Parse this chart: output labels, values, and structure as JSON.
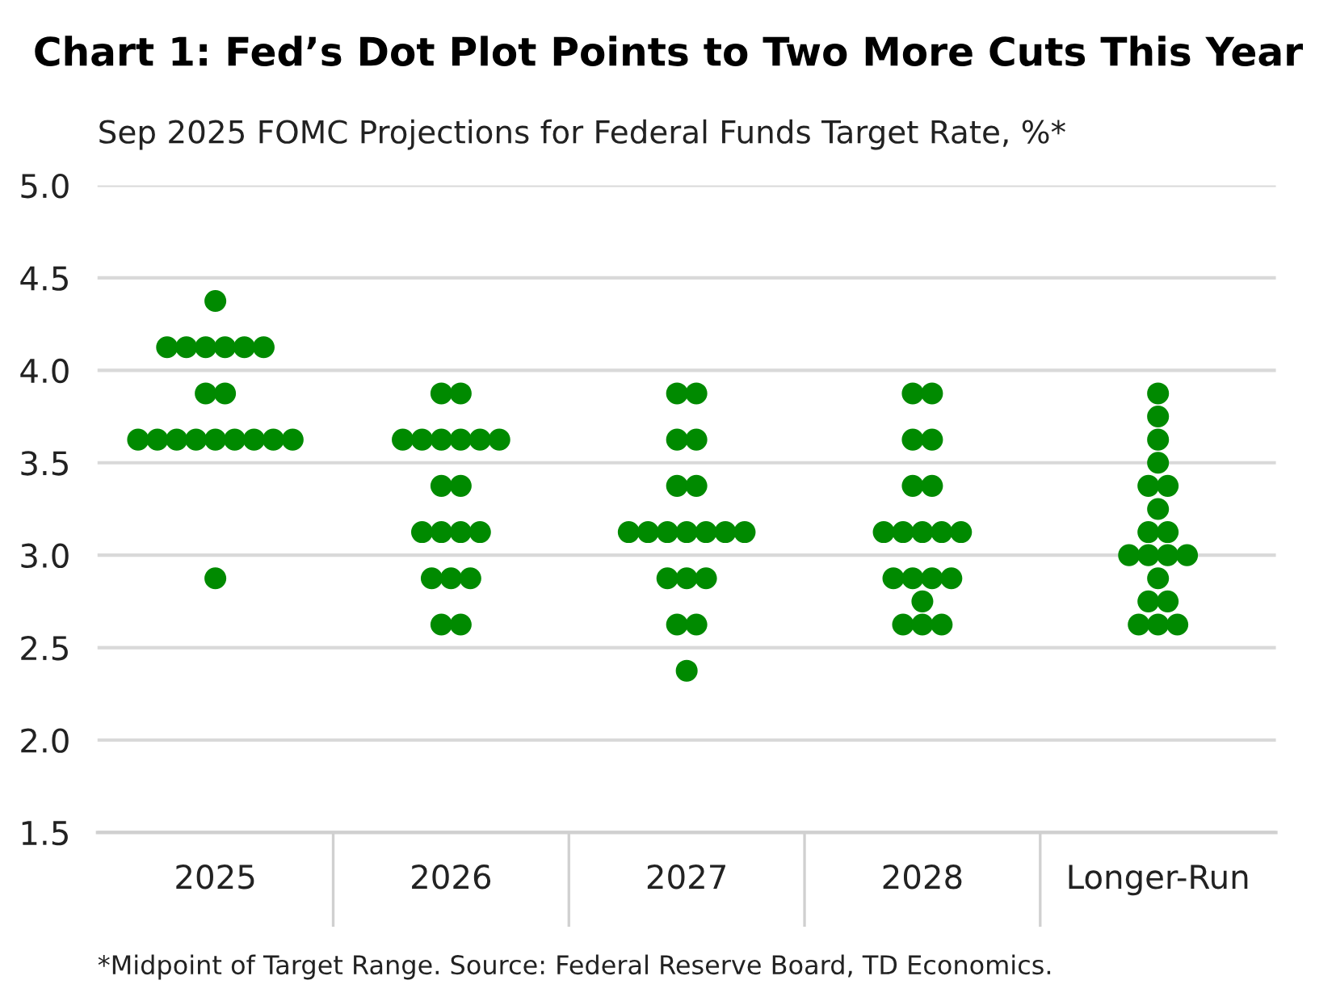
{
  "chart_data": {
    "type": "scatter",
    "title": "Chart 1: Fed’s Dot Plot Points to Two More Cuts This Year",
    "subtitle": "Sep 2025 FOMC Projections for Federal Funds Target Rate, %*",
    "categories": [
      "2025",
      "2026",
      "2027",
      "2028",
      "Longer-Run"
    ],
    "series": [
      {
        "color": "#008a00",
        "values": [
          4.375,
          3.875,
          3.875,
          3.875,
          3.875
        ]
      },
      {
        "color": "#008a00",
        "values": [
          4.125,
          3.875,
          3.875,
          3.875,
          3.75
        ]
      },
      {
        "color": "#008a00",
        "values": [
          4.125,
          3.625,
          3.625,
          3.625,
          3.625
        ]
      },
      {
        "color": "#008a00",
        "values": [
          4.125,
          3.625,
          3.625,
          3.625,
          3.5
        ]
      },
      {
        "color": "#008a00",
        "values": [
          4.125,
          3.625,
          3.375,
          3.375,
          3.375
        ]
      },
      {
        "color": "#008a00",
        "values": [
          4.125,
          3.625,
          3.375,
          3.375,
          3.375
        ]
      },
      {
        "color": "#008a00",
        "values": [
          4.125,
          3.625,
          3.125,
          3.125,
          3.25
        ]
      },
      {
        "color": "#008a00",
        "values": [
          3.875,
          3.625,
          3.125,
          3.125,
          3.125
        ]
      },
      {
        "color": "#008a00",
        "values": [
          3.875,
          3.375,
          3.125,
          3.125,
          3.125
        ]
      },
      {
        "color": "#008a00",
        "values": [
          3.625,
          3.375,
          3.125,
          3.125,
          3.0
        ]
      },
      {
        "color": "#008a00",
        "values": [
          3.625,
          3.125,
          3.125,
          3.125,
          3.0
        ]
      },
      {
        "color": "#008a00",
        "values": [
          3.625,
          3.125,
          3.125,
          2.875,
          3.0
        ]
      },
      {
        "color": "#008a00",
        "values": [
          3.625,
          3.125,
          3.125,
          2.875,
          3.0
        ]
      },
      {
        "color": "#008a00",
        "values": [
          3.625,
          3.125,
          2.875,
          2.875,
          2.875
        ]
      },
      {
        "color": "#008a00",
        "values": [
          3.625,
          2.875,
          2.875,
          2.875,
          2.75
        ]
      },
      {
        "color": "#008a00",
        "values": [
          3.625,
          2.875,
          2.875,
          2.75,
          2.75
        ]
      },
      {
        "color": "#008a00",
        "values": [
          3.625,
          2.875,
          2.625,
          2.625,
          2.625
        ]
      },
      {
        "color": "#008a00",
        "values": [
          3.625,
          2.625,
          2.625,
          2.625,
          2.625
        ]
      },
      {
        "color": "#008a00",
        "values": [
          2.875,
          2.625,
          2.375,
          2.625,
          2.625
        ]
      }
    ],
    "ylim": [
      1.5,
      5.0
    ],
    "yticks": [
      {
        "value": 1.5,
        "label": "1.5"
      },
      {
        "value": 2.0,
        "label": "2.0"
      },
      {
        "value": 2.5,
        "label": "2.5"
      },
      {
        "value": 3.0,
        "label": "3.0"
      },
      {
        "value": 3.5,
        "label": "3.5"
      },
      {
        "value": 4.0,
        "label": "4.0"
      },
      {
        "value": 4.5,
        "label": "4.5"
      },
      {
        "value": 5.0,
        "label": "5.0"
      }
    ],
    "grid": "y",
    "marker": "circle",
    "annotations": [
      "*Midpoint of Target Range. Source: Federal Reserve Board, TD Economics."
    ]
  }
}
